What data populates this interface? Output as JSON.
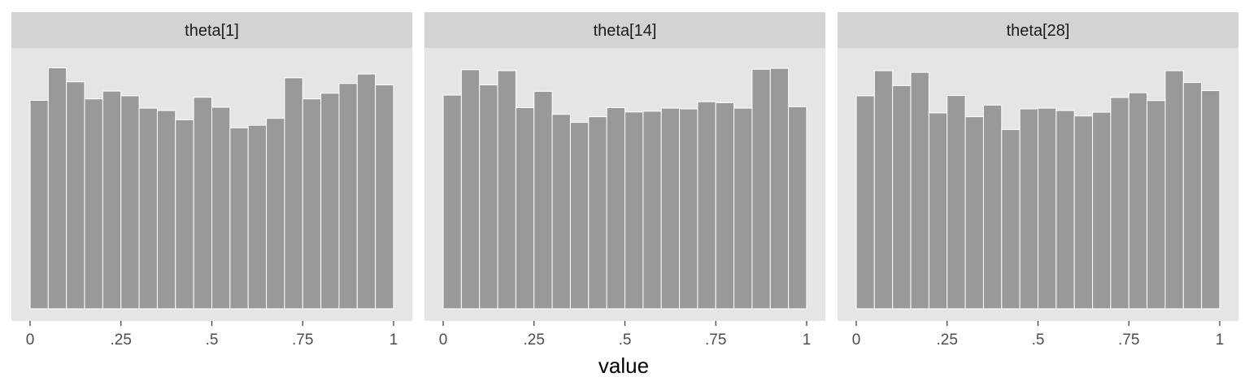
{
  "chart_data": {
    "type": "histogram",
    "facet_by": "parameter",
    "xlabel": "value",
    "ylabel": "",
    "xlim": [
      0,
      1
    ],
    "x_ticks": [
      {
        "value": 0,
        "label": "0"
      },
      {
        "value": 0.25,
        "label": ".25"
      },
      {
        "value": 0.5,
        "label": ".5"
      },
      {
        "value": 0.75,
        "label": ".75"
      },
      {
        "value": 1,
        "label": "1"
      }
    ],
    "bins": 20,
    "bin_edges": [
      0,
      0.05,
      0.1,
      0.15,
      0.2,
      0.25,
      0.3,
      0.35,
      0.4,
      0.45,
      0.5,
      0.55,
      0.6,
      0.65,
      0.7,
      0.75,
      0.8,
      0.85,
      0.9,
      0.95,
      1.0
    ],
    "ylim": [
      0,
      1.1
    ],
    "y_axis_shown": false,
    "grid": false,
    "legend": "none",
    "colors": {
      "panel_background": "#e5e5e5",
      "strip_background": "#d3d3d3",
      "bar_fill": "#999999",
      "bar_outline": "#ffffff"
    },
    "panels": [
      {
        "name": "theta[1]",
        "relative_heights": [
          0.879,
          1.016,
          0.957,
          0.885,
          0.918,
          0.898,
          0.846,
          0.836,
          0.797,
          0.892,
          0.85,
          0.763,
          0.774,
          0.803,
          0.974,
          0.885,
          0.909,
          0.95,
          0.99,
          0.944
        ]
      },
      {
        "name": "theta[14]",
        "relative_heights": [
          0.901,
          1.008,
          0.944,
          1.004,
          0.848,
          0.917,
          0.82,
          0.786,
          0.81,
          0.848,
          0.83,
          0.833,
          0.846,
          0.843,
          0.873,
          0.869,
          0.846,
          1.01,
          1.014,
          0.852
        ]
      },
      {
        "name": "theta[28]",
        "relative_heights": [
          0.898,
          1.004,
          0.941,
          0.997,
          0.826,
          0.899,
          0.81,
          0.859,
          0.756,
          0.843,
          0.846,
          0.836,
          0.813,
          0.829,
          0.891,
          0.911,
          0.878,
          1.004,
          0.954,
          0.92
        ]
      }
    ]
  }
}
